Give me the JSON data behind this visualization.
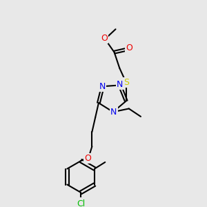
{
  "bg_color": "#e8e8e8",
  "bond_color": "#000000",
  "bond_width": 1.5,
  "atom_colors": {
    "N": "#0000ee",
    "O": "#ee0000",
    "S": "#cccc00",
    "Cl": "#00bb00",
    "C": "#000000"
  },
  "font_size": 9,
  "font_size_small": 8
}
